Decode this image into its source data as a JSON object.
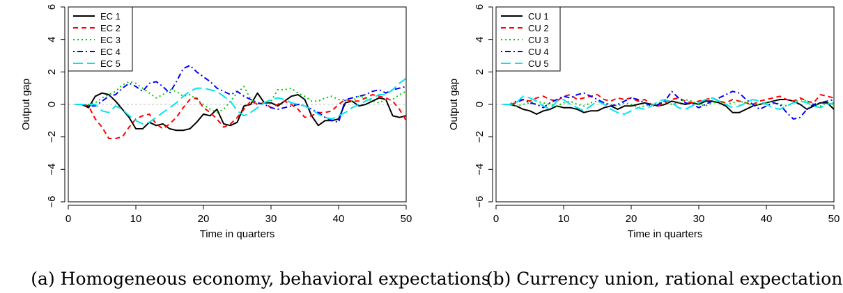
{
  "colors": {
    "s1": "#000000",
    "s2": "#ff0000",
    "s3": "#00cd00",
    "s4": "#0000ff",
    "s5": "#00e5ee",
    "zero": "#c0c0c0"
  },
  "chart_data": [
    {
      "type": "line",
      "caption": "(a) Homogeneous economy, behavioral expectations",
      "xlabel": "Time in quarters",
      "ylabel": "Output gap",
      "xlim": [
        0,
        50
      ],
      "ylim": [
        -6,
        6
      ],
      "xticks": [
        "0",
        "10",
        "20",
        "30",
        "40",
        "50"
      ],
      "yticks": [
        "−6",
        "−4",
        "−2",
        "0",
        "2",
        "4",
        "6"
      ],
      "legend_position": "top-left",
      "grid": false,
      "x": [
        1,
        2,
        3,
        4,
        5,
        6,
        7,
        8,
        9,
        10,
        11,
        12,
        13,
        14,
        15,
        16,
        17,
        18,
        19,
        20,
        21,
        22,
        23,
        24,
        25,
        26,
        27,
        28,
        29,
        30,
        31,
        32,
        33,
        34,
        35,
        36,
        37,
        38,
        39,
        40,
        41,
        42,
        43,
        44,
        45,
        46,
        47,
        48,
        49,
        50
      ],
      "series": [
        {
          "name": "EC 1",
          "dash": "solid",
          "values": [
            0,
            0,
            -0.2,
            0.5,
            0.7,
            0.6,
            0.2,
            -0.3,
            -0.8,
            -1.5,
            -1.5,
            -1.1,
            -1.3,
            -1.2,
            -1.5,
            -1.6,
            -1.6,
            -1.5,
            -1.1,
            -0.6,
            -0.7,
            -0.3,
            -1.2,
            -1.3,
            -1.1,
            -0.1,
            0,
            0.7,
            0.1,
            0.1,
            -0.1,
            0.2,
            0.5,
            0.6,
            0.3,
            -0.7,
            -1.3,
            -1.0,
            -1.0,
            -0.9,
            0.1,
            0.2,
            -0.1,
            0,
            0.2,
            0.4,
            0.3,
            -0.7,
            -0.8,
            -0.7
          ]
        },
        {
          "name": "EC 2",
          "dash": "dashed",
          "values": [
            0,
            0,
            -0.1,
            -0.9,
            -1.4,
            -2.1,
            -2.1,
            -2.0,
            -1.4,
            -0.9,
            -0.7,
            -0.6,
            -1.2,
            -1.5,
            -1.2,
            -0.8,
            -0.2,
            0.3,
            0.4,
            -0.2,
            -0.5,
            -0.9,
            -1.4,
            -1.2,
            -0.8,
            -0.3,
            0.2,
            0,
            0.1,
            -0.2,
            0,
            0.2,
            0,
            -0.3,
            -0.8,
            -0.7,
            -0.5,
            -0.5,
            -0.4,
            0,
            0.3,
            0.2,
            0.2,
            0.4,
            0.6,
            0.5,
            0.4,
            0.2,
            -0.3,
            -1.0
          ]
        },
        {
          "name": "EC 3",
          "dash": "dotted",
          "values": [
            0,
            0,
            0,
            0.1,
            0.4,
            0.6,
            0.8,
            1.2,
            1.4,
            1.3,
            1.0,
            0.7,
            0.4,
            0.6,
            0.9,
            0.8,
            0.5,
            0.6,
            0.3,
            0,
            -0.3,
            -0.5,
            -0.3,
            0.2,
            0.7,
            1.1,
            0.3,
            0,
            0.1,
            0.2,
            0.9,
            0.9,
            1.0,
            0.7,
            0.5,
            0.2,
            0.2,
            0.4,
            0.5,
            0.3,
            0.3,
            0.2,
            0.5,
            0.4,
            0.2,
            0.1,
            0.3,
            0.3,
            0.6,
            0.8
          ]
        },
        {
          "name": "EC 4",
          "dash": "dashdot",
          "values": [
            0,
            0,
            -0.1,
            -0.1,
            0.2,
            0.5,
            0.6,
            1.0,
            1.3,
            1.1,
            0.8,
            1.3,
            1.4,
            1.1,
            0.7,
            1.4,
            2.2,
            2.4,
            2.0,
            1.7,
            1.4,
            1.0,
            0.8,
            0.6,
            0.8,
            0.5,
            0.3,
            0.1,
            0,
            -0.2,
            -0.3,
            -0.2,
            -0.1,
            0,
            -0.1,
            -0.3,
            -0.5,
            -0.8,
            -1.0,
            -1.1,
            0.3,
            0.4,
            0.5,
            0.6,
            0.8,
            0.9,
            0.7,
            0.9,
            1.0,
            1.1
          ]
        },
        {
          "name": "EC 5",
          "dash": "longdash",
          "values": [
            0,
            0,
            0,
            0,
            -0.4,
            -0.5,
            -0.1,
            -0.3,
            -0.7,
            -1.0,
            -1.2,
            -1.1,
            -0.8,
            -0.5,
            -0.2,
            0.1,
            0.5,
            0.8,
            1.0,
            1.0,
            0.9,
            0.8,
            0.5,
            0.2,
            -0.4,
            -0.7,
            -0.5,
            -0.2,
            0.1,
            0.3,
            0.4,
            0.3,
            0.1,
            0,
            -0.1,
            -0.3,
            -0.6,
            -0.8,
            -0.9,
            -0.7,
            -0.5,
            -0.2,
            0,
            0.2,
            0.4,
            0.6,
            0.6,
            0.9,
            1.3,
            1.6
          ]
        }
      ]
    },
    {
      "type": "line",
      "caption": "(b) Currency union, rational expectations",
      "xlabel": "Time in quarters",
      "ylabel": "Output gap",
      "xlim": [
        0,
        50
      ],
      "ylim": [
        -6,
        6
      ],
      "xticks": [
        "0",
        "10",
        "20",
        "30",
        "40",
        "50"
      ],
      "yticks": [
        "−6",
        "−4",
        "−2",
        "0",
        "2",
        "4",
        "6"
      ],
      "legend_position": "top-left",
      "grid": false,
      "x": [
        1,
        2,
        3,
        4,
        5,
        6,
        7,
        8,
        9,
        10,
        11,
        12,
        13,
        14,
        15,
        16,
        17,
        18,
        19,
        20,
        21,
        22,
        23,
        24,
        25,
        26,
        27,
        28,
        29,
        30,
        31,
        32,
        33,
        34,
        35,
        36,
        37,
        38,
        39,
        40,
        41,
        42,
        43,
        44,
        45,
        46,
        47,
        48,
        49,
        50
      ],
      "series": [
        {
          "name": "CU 1",
          "dash": "solid",
          "values": [
            0,
            0,
            -0.1,
            -0.3,
            -0.4,
            -0.6,
            -0.4,
            -0.3,
            -0.1,
            -0.2,
            -0.2,
            -0.3,
            -0.5,
            -0.4,
            -0.4,
            -0.2,
            -0.1,
            -0.3,
            -0.1,
            -0.1,
            0,
            0.1,
            0,
            -0.1,
            0,
            0.2,
            0.1,
            0,
            0.1,
            0,
            0.2,
            0.2,
            0.1,
            -0.1,
            -0.5,
            -0.5,
            -0.3,
            -0.1,
            0,
            0.1,
            0.2,
            0.3,
            0.3,
            0.2,
            0,
            -0.3,
            -0.1,
            0.1,
            0.1,
            -0.3
          ]
        },
        {
          "name": "CU 2",
          "dash": "dashed",
          "values": [
            0,
            0,
            0.1,
            0.3,
            0.2,
            0.4,
            0.5,
            0.3,
            0.2,
            0.5,
            0.6,
            0.3,
            0.4,
            0.5,
            0.6,
            0.3,
            0.2,
            0.4,
            0.3,
            0.4,
            0.2,
            0.3,
            0,
            -0.1,
            0.1,
            0.3,
            0.4,
            0.2,
            0.1,
            0.2,
            0.3,
            0.4,
            0.2,
            0.1,
            0.3,
            0.2,
            0.1,
            0,
            0.2,
            0.3,
            0.4,
            0.5,
            0.3,
            0.2,
            0.4,
            0.2,
            0.1,
            0.6,
            0.5,
            0.4
          ]
        },
        {
          "name": "CU 3",
          "dash": "dotted",
          "values": [
            0,
            0,
            -0.1,
            0,
            0.1,
            0.2,
            0.1,
            0,
            -0.1,
            0.1,
            0.2,
            0,
            -0.1,
            0.1,
            0.2,
            0.1,
            0,
            -0.1,
            0.1,
            0,
            -0.2,
            -0.1,
            0,
            0.1,
            0.2,
            0,
            0.1,
            0.3,
            0.2,
            0,
            -0.1,
            0.1,
            0.2,
            0,
            0.1,
            0.2,
            0.1,
            -0.1,
            0,
            0.1,
            0.2,
            0,
            -0.1,
            0.1,
            0.3,
            0.2,
            0,
            -0.1,
            0.1,
            0
          ]
        },
        {
          "name": "CU 4",
          "dash": "dashdot",
          "values": [
            0,
            0,
            0.2,
            0.3,
            0.1,
            0,
            -0.2,
            0.1,
            0.3,
            0.5,
            0.4,
            0.6,
            0.7,
            0.5,
            0.3,
            0.1,
            -0.1,
            0,
            0.2,
            0.4,
            0.3,
            0.1,
            -0.1,
            0,
            0.2,
            0.8,
            0.4,
            0.1,
            0,
            -0.2,
            0,
            0.2,
            0.4,
            0.6,
            0.8,
            0.7,
            0.3,
            0,
            -0.3,
            -0.1,
            0.1,
            0,
            -0.5,
            -0.9,
            -0.8,
            -0.3,
            0,
            0.1,
            0.2,
            0.3
          ]
        },
        {
          "name": "CU 5",
          "dash": "longdash",
          "values": [
            0,
            0,
            0.1,
            0.5,
            0.4,
            0.2,
            -0.1,
            -0.3,
            0.2,
            0.3,
            0,
            -0.2,
            -0.4,
            -0.1,
            0.2,
            0,
            -0.3,
            -0.5,
            -0.6,
            -0.4,
            -0.2,
            -0.3,
            -0.1,
            0.2,
            0.3,
            0.1,
            -0.2,
            -0.3,
            -0.1,
            0.1,
            0.3,
            0.4,
            0.2,
            0,
            -0.2,
            -0.1,
            0.1,
            0.3,
            0.2,
            0,
            -0.2,
            -0.3,
            -0.1,
            0.1,
            0.2,
            0.1,
            -0.1,
            -0.2,
            0,
            0.1
          ]
        }
      ]
    }
  ]
}
